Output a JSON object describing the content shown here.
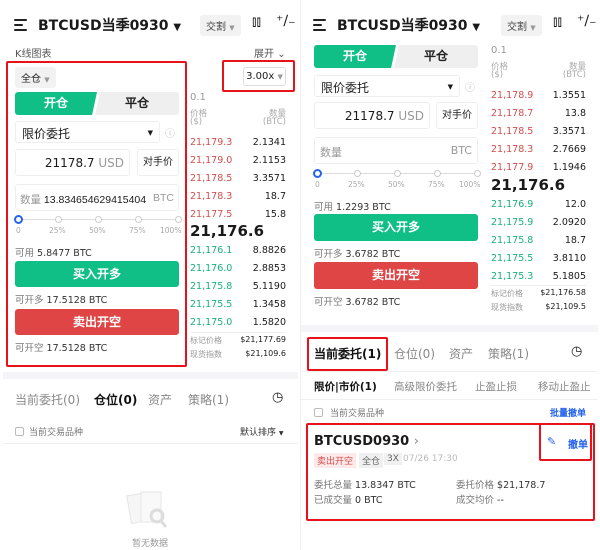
{
  "colors": {
    "buy": "#0fbf86",
    "sell": "#e04545",
    "highlight": "#e8121a",
    "link": "#2563eb"
  },
  "left": {
    "header": {
      "title": "BTCUSD当季0930",
      "type_tag": "交割"
    },
    "kline": {
      "label": "K线图表",
      "expand": "展开"
    },
    "margin_mode": "全仓",
    "leverage": "3.00x",
    "tabs": [
      "开仓",
      "平仓"
    ],
    "order_type": "限价委托",
    "price": {
      "value": "21178.7",
      "unit": "USD",
      "counterparty": "对手价"
    },
    "quantity": {
      "label": "数量",
      "value": "13.834654629415404",
      "unit": "BTC"
    },
    "slider": {
      "labels": [
        "0",
        "25%",
        "50%",
        "75%",
        "100%"
      ],
      "value_percent": 0
    },
    "available": {
      "label": "可用",
      "value": "5.8477 BTC"
    },
    "buy_label": "买入开多",
    "can_long": {
      "label": "可开多",
      "value": "17.5128 BTC"
    },
    "sell_label": "卖出开空",
    "can_short": {
      "label": "可开空",
      "value": "17.5128 BTC"
    },
    "orderbook": {
      "precision": "0.1",
      "price_header": "价格",
      "price_unit": "($)",
      "qty_header": "数量",
      "qty_unit": "(BTC)",
      "asks": [
        [
          "21,179.3",
          "2.1341"
        ],
        [
          "21,179.0",
          "2.1153"
        ],
        [
          "21,178.5",
          "3.3571"
        ],
        [
          "21,178.3",
          "18.7"
        ],
        [
          "21,177.5",
          "15.8"
        ]
      ],
      "last": "21,176.6",
      "bids": [
        [
          "21,176.1",
          "8.8826"
        ],
        [
          "21,176.0",
          "2.8853"
        ],
        [
          "21,175.8",
          "5.1190"
        ],
        [
          "21,175.5",
          "1.3458"
        ],
        [
          "21,175.0",
          "1.5820"
        ]
      ],
      "mark_label": "标记价格",
      "mark": "$21,177.69",
      "index_label": "现货指数",
      "index": "$21,109.6"
    },
    "bottom_tabs": [
      "当前委托(0)",
      "仓位(0)",
      "资产",
      "策略(1)"
    ],
    "filter_label": "当前交易品种",
    "sort": "默认排序",
    "empty": "暂无数据"
  },
  "right": {
    "header": {
      "title": "BTCUSD当季0930",
      "type_tag": "交割"
    },
    "tabs": [
      "开仓",
      "平仓"
    ],
    "order_type": "限价委托",
    "price": {
      "value": "21178.7",
      "unit": "USD",
      "counterparty": "对手价"
    },
    "quantity": {
      "label": "数量",
      "unit": "BTC"
    },
    "slider": {
      "labels": [
        "0",
        "25%",
        "50%",
        "75%",
        "100%"
      ],
      "value_percent": 0
    },
    "available": {
      "label": "可用",
      "value": "1.2293 BTC"
    },
    "buy_label": "买入开多",
    "can_long": {
      "label": "可开多",
      "value": "3.6782 BTC"
    },
    "sell_label": "卖出开空",
    "can_short": {
      "label": "可开空",
      "value": "3.6782 BTC"
    },
    "orderbook": {
      "precision": "0.1",
      "price_header": "价格",
      "price_unit": "($)",
      "qty_header": "数量",
      "qty_unit": "(BTC)",
      "asks": [
        [
          "21,178.9",
          "1.3551"
        ],
        [
          "21,178.7",
          "13.8"
        ],
        [
          "21,178.5",
          "3.3571"
        ],
        [
          "21,178.3",
          "2.7669"
        ],
        [
          "21,177.9",
          "1.1946"
        ]
      ],
      "last": "21,176.6",
      "bids": [
        [
          "21,176.9",
          "12.0"
        ],
        [
          "21,175.9",
          "2.0920"
        ],
        [
          "21,175.8",
          "18.7"
        ],
        [
          "21,175.5",
          "3.8110"
        ],
        [
          "21,175.3",
          "5.1805"
        ]
      ],
      "mark_label": "标记价格",
      "mark": "$21,176.58",
      "index_label": "现货指数",
      "index": "$21,109.5"
    },
    "bottom_tabs": [
      "当前委托(1)",
      "仓位(0)",
      "资产",
      "策略(1)"
    ],
    "sub_tabs": [
      "限价|市价(1)",
      "高级限价委托",
      "止盈止损",
      "移动止盈止"
    ],
    "filter_label": "当前交易品种",
    "batch_cancel": "批量撤单",
    "order": {
      "symbol": "BTCUSD0930",
      "side": "卖出开空",
      "mode": "全仓",
      "leverage": "3X",
      "time": "07/26 17:30",
      "total_label": "委托总量",
      "total": "13.8347 BTC",
      "price_label": "委托价格",
      "price": "$21,178.7",
      "filled_label": "已成交量",
      "filled": "0 BTC",
      "avg_label": "成交均价",
      "avg": "--",
      "cancel": "撤单"
    }
  }
}
